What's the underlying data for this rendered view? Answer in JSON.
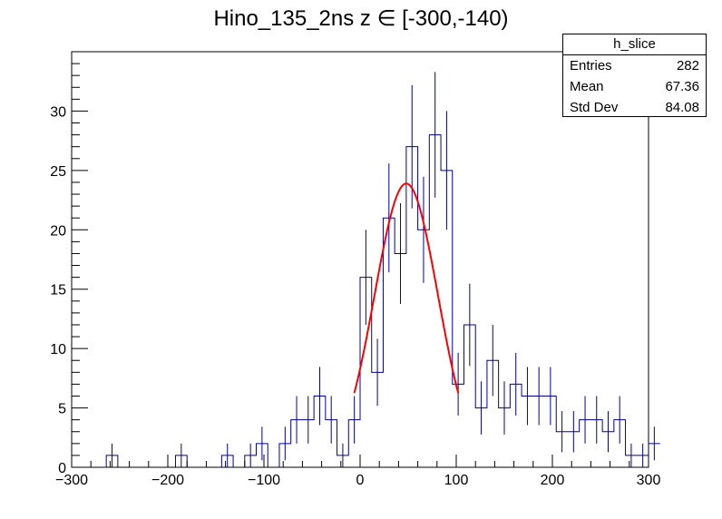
{
  "chart_data": {
    "type": "histogram",
    "title": "Hino_135_2ns z  ∈ [-300,-140)",
    "xlabel": "",
    "ylabel": "",
    "xlim": [
      -300,
      300
    ],
    "ylim": [
      0,
      35
    ],
    "x_ticks": [
      -300,
      -200,
      -100,
      0,
      100,
      200,
      300
    ],
    "x_tick_labels": [
      "−300",
      "−200",
      "−100",
      "0",
      "100",
      "200",
      "300"
    ],
    "y_ticks": [
      0,
      5,
      10,
      15,
      20,
      25,
      30
    ],
    "y_tick_labels": [
      "0",
      "5",
      "10",
      "15",
      "20",
      "25",
      "30"
    ],
    "bin_width": 12,
    "bin_start": -300,
    "counts": [
      0,
      0,
      0,
      1,
      0,
      0,
      0,
      0,
      0,
      1,
      0,
      0,
      0,
      1,
      0,
      1,
      2,
      0,
      2,
      4,
      4,
      6,
      4,
      1,
      4,
      16,
      8,
      21,
      18,
      27,
      20,
      28,
      25,
      7,
      12,
      5,
      9,
      5,
      7,
      6,
      6,
      6,
      3,
      3,
      4,
      4,
      3,
      4,
      1,
      1,
      2
    ],
    "series": [
      {
        "name": "h_slice",
        "color": "#000099",
        "style": "histogram-with-errors"
      },
      {
        "name": "",
        "color": "#ff0000",
        "style": "gaussian-fit",
        "amplitude": 23.9,
        "mean": 48,
        "sigma": 33,
        "x_range": [
          -6,
          102
        ]
      }
    ],
    "grid": false,
    "legend": "top-right"
  },
  "stats_box": {
    "name": "h_slice",
    "rows": [
      {
        "label": "Entries",
        "value": "282"
      },
      {
        "label": "Mean",
        "value": "67.36"
      },
      {
        "label": "Std Dev",
        "value": "84.08"
      }
    ]
  }
}
